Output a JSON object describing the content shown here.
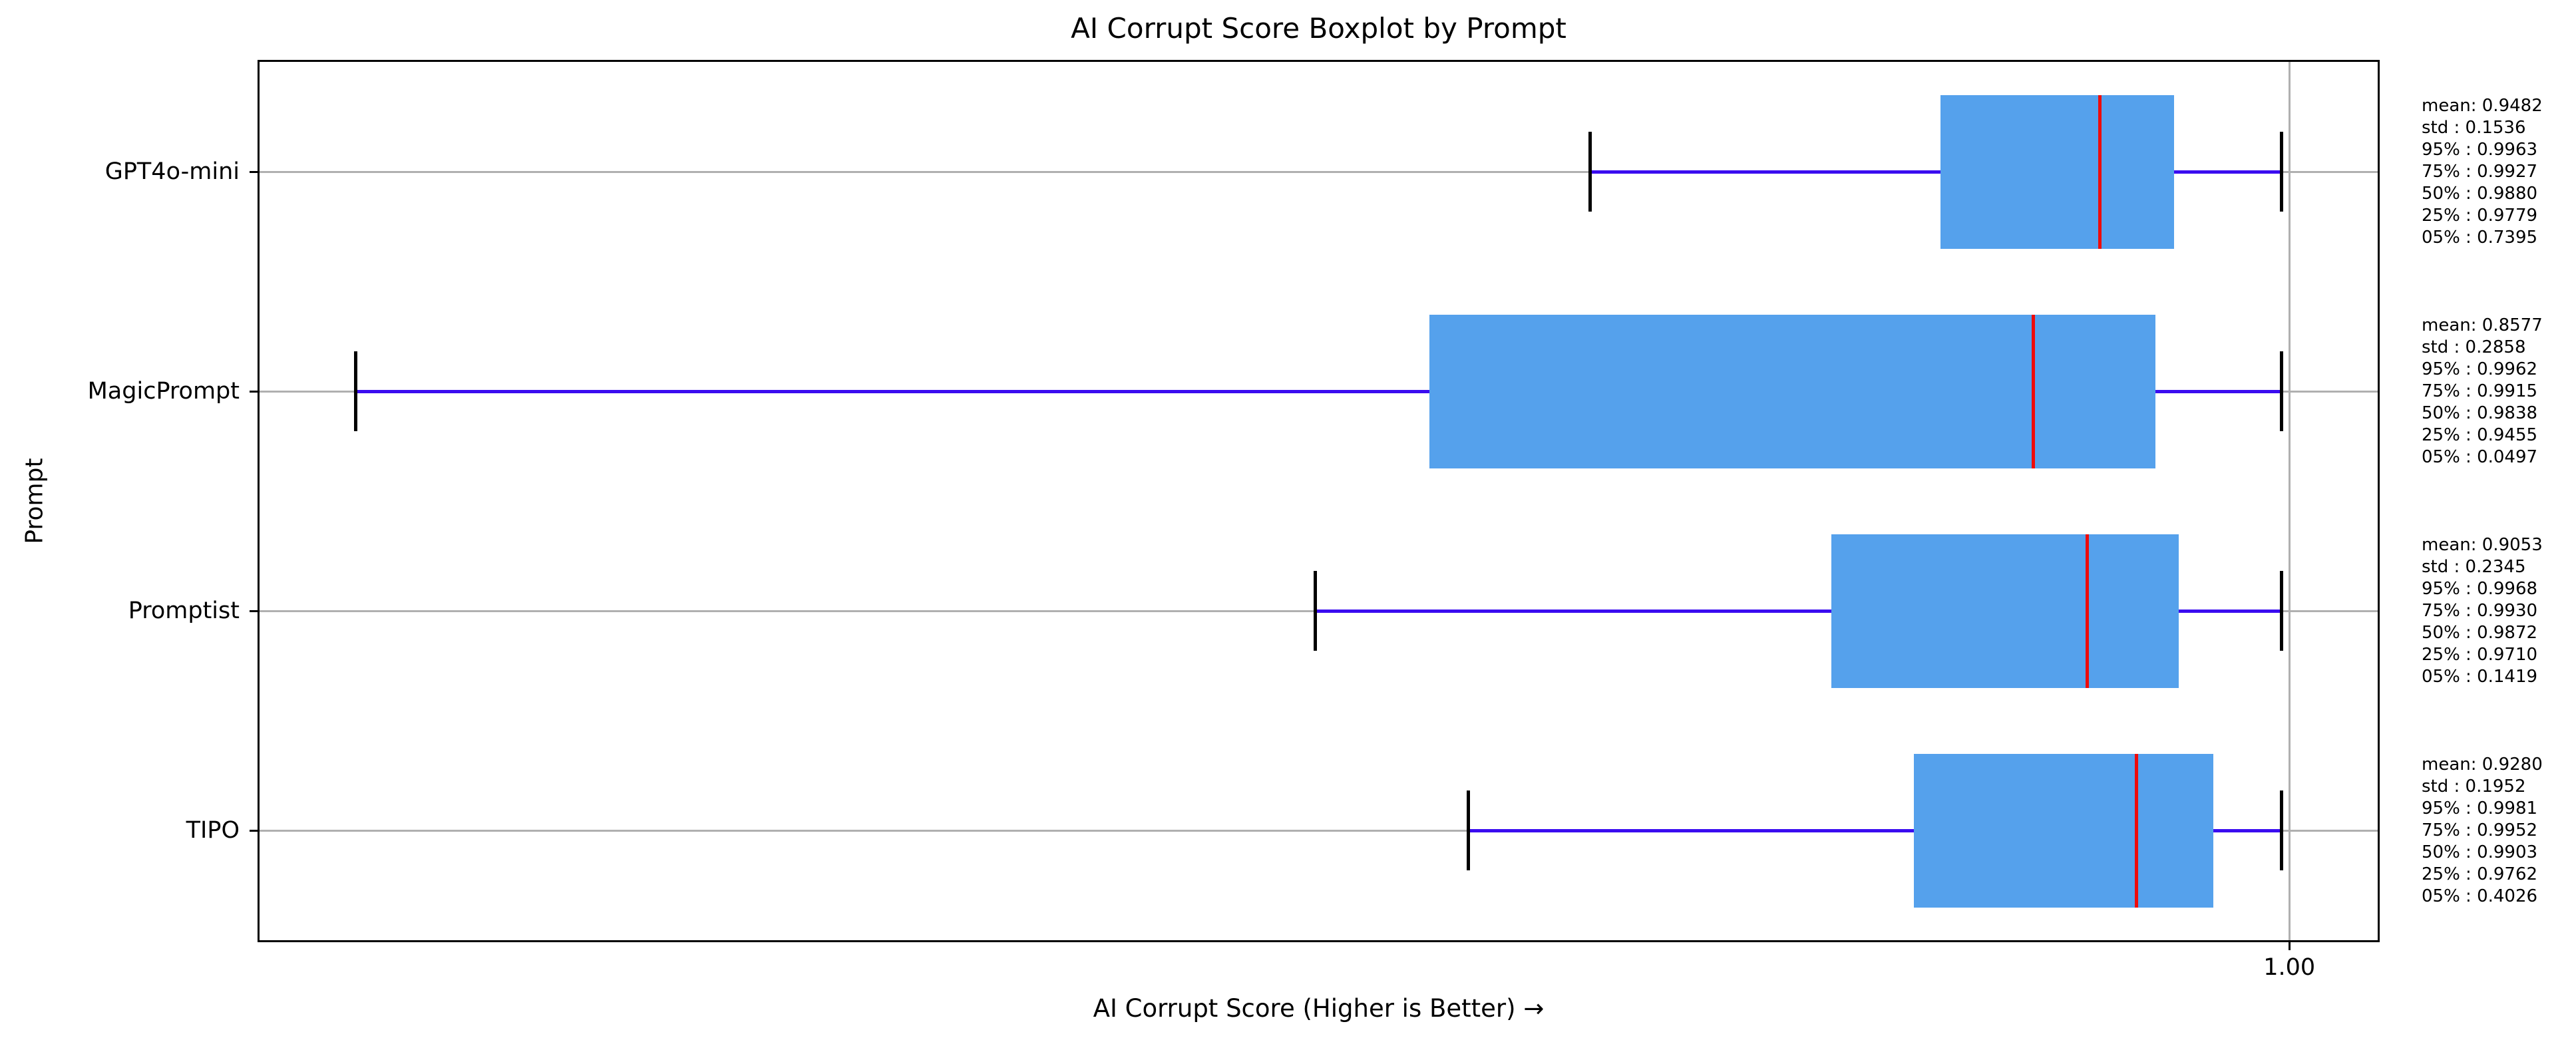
{
  "chart_data": {
    "type": "boxplot",
    "orientation": "horizontal",
    "title": "AI Corrupt Score Boxplot by Prompt",
    "xlabel": "AI Corrupt Score (Higher is Better) →",
    "ylabel": "Prompt",
    "x_axis": {
      "min": 0.8714,
      "max": 1.0056,
      "tick_value": 1.0,
      "tick_label": "1.00",
      "grid": true
    },
    "y_grid": true,
    "legend": "none",
    "colors": {
      "box_fill": "#55a1ec",
      "median": "#ee0b0b",
      "whisker": "#3a0cf0",
      "cap": "#000000",
      "grid": "#b0b0b0",
      "frame": "#000000"
    },
    "rows": [
      {
        "label": "GPT4o-mini",
        "whisker_low": 0.9557,
        "q1": 0.9779,
        "median": 0.988,
        "q3": 0.9927,
        "whisker_high": 0.9995,
        "stats_lines": [
          "mean: 0.9482",
          "std : 0.1536",
          "95% : 0.9963",
          "75% : 0.9927",
          "50% : 0.9880",
          "25% : 0.9779",
          "05% : 0.7395"
        ]
      },
      {
        "label": "MagicPrompt",
        "whisker_low": 0.8775,
        "q1": 0.9455,
        "median": 0.9838,
        "q3": 0.9915,
        "whisker_high": 0.9995,
        "stats_lines": [
          "mean: 0.8577",
          "std : 0.2858",
          "95% : 0.9962",
          "75% : 0.9915",
          "50% : 0.9838",
          "25% : 0.9455",
          "05% : 0.0497"
        ]
      },
      {
        "label": "Promptist",
        "whisker_low": 0.9383,
        "q1": 0.971,
        "median": 0.9872,
        "q3": 0.993,
        "whisker_high": 0.9995,
        "stats_lines": [
          "mean: 0.9053",
          "std : 0.2345",
          "95% : 0.9968",
          "75% : 0.9930",
          "50% : 0.9872",
          "25% : 0.9710",
          "05% : 0.1419"
        ]
      },
      {
        "label": "TIPO",
        "whisker_low": 0.948,
        "q1": 0.9762,
        "median": 0.9903,
        "q3": 0.9952,
        "whisker_high": 0.9995,
        "stats_lines": [
          "mean: 0.9280",
          "std : 0.1952",
          "95% : 0.9981",
          "75% : 0.9952",
          "50% : 0.9903",
          "25% : 0.9762",
          "05% : 0.4026"
        ]
      }
    ]
  }
}
